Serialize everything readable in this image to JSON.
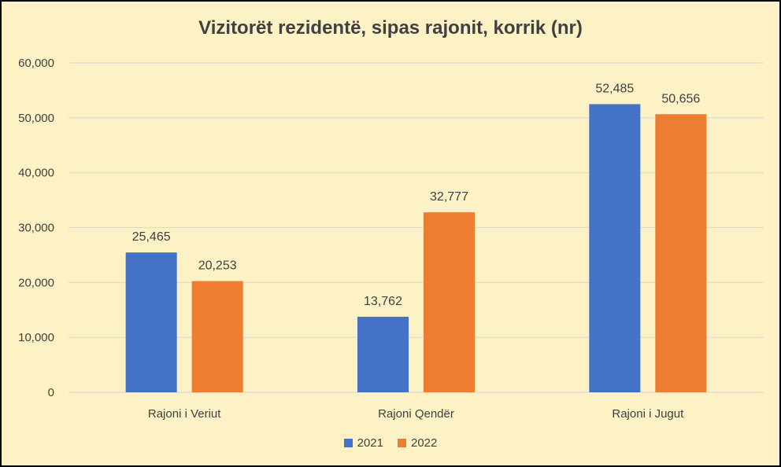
{
  "chart_data": {
    "type": "bar",
    "title": "Vizitorët rezidentë, sipas rajonit, korrik (nr)",
    "categories": [
      "Rajoni i Veriut",
      "Rajoni Qendër",
      "Rajoni i Jugut"
    ],
    "series": [
      {
        "name": "2021",
        "values": [
          25465,
          13762,
          52485
        ],
        "labels": [
          "25,465",
          "13,762",
          "52,485"
        ],
        "color": "#4472c4"
      },
      {
        "name": "2022",
        "values": [
          20253,
          32777,
          50656
        ],
        "labels": [
          "20,253",
          "32,777",
          "50,656"
        ],
        "color": "#ed7d31"
      }
    ],
    "ylim": [
      0,
      60000
    ],
    "yticks": [
      0,
      10000,
      20000,
      30000,
      40000,
      50000,
      60000
    ],
    "ytick_labels": [
      "0",
      "10,000",
      "20,000",
      "30,000",
      "40,000",
      "50,000",
      "60,000"
    ],
    "grid": true,
    "legend": "bottom",
    "gridline_color": "#d9d9d9",
    "background_color": "#fdf1c6"
  }
}
